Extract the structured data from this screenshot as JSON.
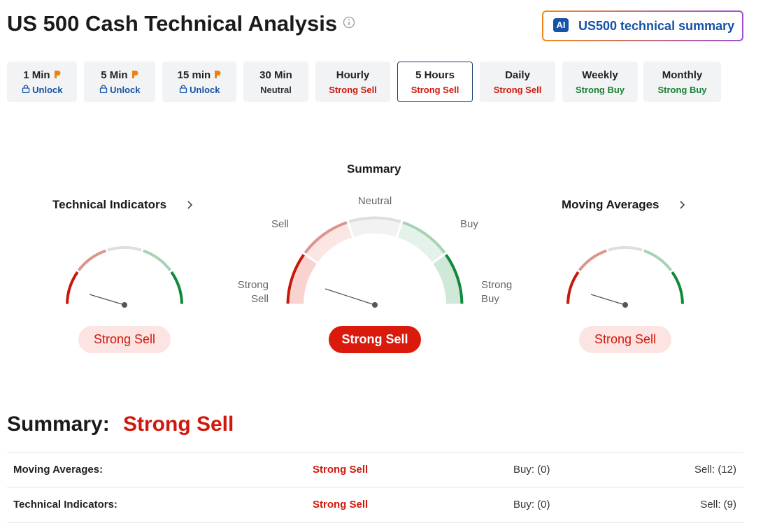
{
  "header": {
    "title": "US 500 Cash Technical Analysis"
  },
  "ai_button": {
    "badge": "AI",
    "label": "US500 technical summary"
  },
  "timeframes": [
    {
      "label": "1 Min",
      "status": "Unlock"
    },
    {
      "label": "5 Min",
      "status": "Unlock"
    },
    {
      "label": "15 min",
      "status": "Unlock"
    },
    {
      "label": "30 Min",
      "status": "Neutral"
    },
    {
      "label": "Hourly",
      "status": "Strong Sell"
    },
    {
      "label": "5 Hours",
      "status": "Strong Sell"
    },
    {
      "label": "Daily",
      "status": "Strong Sell"
    },
    {
      "label": "Weekly",
      "status": "Strong Buy"
    },
    {
      "label": "Monthly",
      "status": "Strong Buy"
    }
  ],
  "gauges": {
    "technical_indicators": {
      "title": "Technical Indicators",
      "result": "Strong Sell"
    },
    "summary": {
      "title": "Summary",
      "labels": [
        "Strong Sell",
        "Sell",
        "Neutral",
        "Buy",
        "Strong Buy"
      ],
      "result": "Strong Sell"
    },
    "moving_averages": {
      "title": "Moving Averages",
      "result": "Strong Sell"
    }
  },
  "summary": {
    "heading": "Summary:",
    "result": "Strong Sell",
    "rows": [
      [
        "Moving Averages:",
        "Strong Sell",
        "Buy: (0)",
        "Sell: (12)"
      ],
      [
        "Technical Indicators:",
        "Strong Sell",
        "Buy: (0)",
        "Sell: (9)"
      ]
    ]
  }
}
